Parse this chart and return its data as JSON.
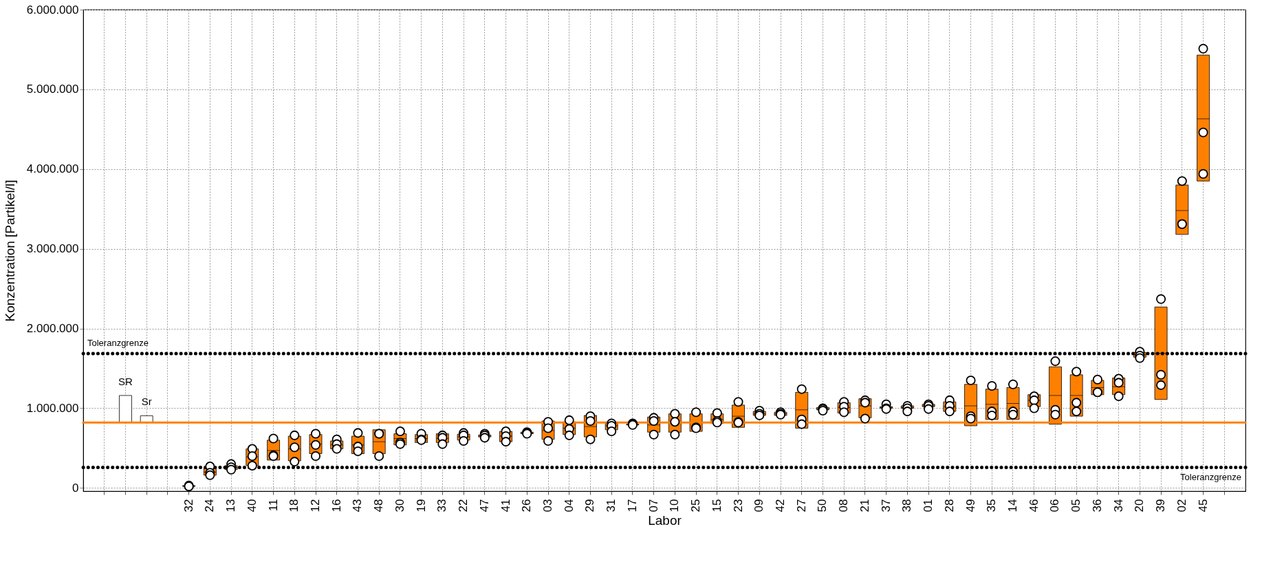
{
  "chart_data": {
    "type": "box",
    "xlabel": "Labor",
    "ylabel": "Konzentration [Partikel/l]",
    "categories": [
      null,
      null,
      null,
      null,
      "32",
      "24",
      "13",
      "40",
      "11",
      "18",
      "12",
      "16",
      "43",
      "48",
      "30",
      "19",
      "33",
      "22",
      "47",
      "41",
      "26",
      "03",
      "04",
      "29",
      "31",
      "17",
      "07",
      "10",
      "25",
      "15",
      "23",
      "09",
      "42",
      "27",
      "50",
      "08",
      "21",
      "37",
      "38",
      "01",
      "28",
      "49",
      "35",
      "14",
      "46",
      "06",
      "05",
      "36",
      "34",
      "20",
      "39",
      "02",
      "45",
      null
    ],
    "boxes": [
      null,
      {
        "low": 820000,
        "q1": 820000,
        "median": 820000,
        "q3": 1160000,
        "high": 1160000
      },
      {
        "low": 820000,
        "q1": 820000,
        "median": 820000,
        "q3": 906000,
        "high": 906000
      },
      null,
      {
        "low": 20000,
        "q1": 20000,
        "median": 20000,
        "q3": 30000,
        "high": 30000
      },
      {
        "low": 160000,
        "q1": 160000,
        "median": 200000,
        "q3": 250000,
        "high": 250000
      },
      {
        "low": 230000,
        "q1": 230000,
        "median": 250000,
        "q3": 280000,
        "high": 280000
      },
      {
        "low": 280000,
        "q1": 280000,
        "median": 390000,
        "q3": 490000,
        "high": 490000
      },
      {
        "low": 350000,
        "q1": 350000,
        "median": 470000,
        "q3": 600000,
        "high": 600000
      },
      {
        "low": 340000,
        "q1": 340000,
        "median": 490000,
        "q3": 650000,
        "high": 650000
      },
      {
        "low": 430000,
        "q1": 430000,
        "median": 550000,
        "q3": 670000,
        "high": 670000
      },
      {
        "low": 490000,
        "q1": 490000,
        "median": 540000,
        "q3": 590000,
        "high": 590000
      },
      {
        "low": 430000,
        "q1": 430000,
        "median": 540000,
        "q3": 650000,
        "high": 650000
      },
      {
        "low": 430000,
        "q1": 430000,
        "median": 580000,
        "q3": 730000,
        "high": 730000
      },
      {
        "low": 540000,
        "q1": 540000,
        "median": 620000,
        "q3": 680000,
        "high": 680000
      },
      {
        "low": 570000,
        "q1": 570000,
        "median": 620000,
        "q3": 670000,
        "high": 670000
      },
      {
        "low": 570000,
        "q1": 570000,
        "median": 620000,
        "q3": 680000,
        "high": 680000
      },
      {
        "low": 600000,
        "q1": 600000,
        "median": 640000,
        "q3": 675000,
        "high": 675000
      },
      {
        "low": 640000,
        "q1": 640000,
        "median": 650000,
        "q3": 665000,
        "high": 665000
      },
      {
        "low": 580000,
        "q1": 580000,
        "median": 650000,
        "q3": 710000,
        "high": 710000
      },
      {
        "low": 680000,
        "q1": 680000,
        "median": 690000,
        "q3": 700000,
        "high": 700000
      },
      {
        "low": 610000,
        "q1": 610000,
        "median": 720000,
        "q3": 840000,
        "high": 840000
      },
      {
        "low": 670000,
        "q1": 670000,
        "median": 750000,
        "q3": 830000,
        "high": 830000
      },
      {
        "low": 640000,
        "q1": 640000,
        "median": 770000,
        "q3": 910000,
        "high": 910000
      },
      {
        "low": 730000,
        "q1": 730000,
        "median": 780000,
        "q3": 820000,
        "high": 820000
      },
      {
        "low": 790000,
        "q1": 790000,
        "median": 795000,
        "q3": 800000,
        "high": 800000
      },
      {
        "low": 700000,
        "q1": 700000,
        "median": 790000,
        "q3": 890000,
        "high": 890000
      },
      {
        "low": 700000,
        "q1": 700000,
        "median": 820000,
        "q3": 930000,
        "high": 930000
      },
      {
        "low": 710000,
        "q1": 710000,
        "median": 820000,
        "q3": 930000,
        "high": 930000
      },
      {
        "low": 810000,
        "q1": 810000,
        "median": 860000,
        "q3": 930000,
        "high": 930000
      },
      {
        "low": 760000,
        "q1": 760000,
        "median": 900000,
        "q3": 1040000,
        "high": 1040000
      },
      {
        "low": 910000,
        "q1": 910000,
        "median": 930000,
        "q3": 960000,
        "high": 960000
      },
      {
        "low": 910000,
        "q1": 910000,
        "median": 930000,
        "q3": 950000,
        "high": 950000
      },
      {
        "low": 750000,
        "q1": 750000,
        "median": 980000,
        "q3": 1200000,
        "high": 1200000
      },
      {
        "low": 980000,
        "q1": 980000,
        "median": 990000,
        "q3": 1010000,
        "high": 1010000
      },
      {
        "low": 940000,
        "q1": 940000,
        "median": 1010000,
        "q3": 1070000,
        "high": 1070000
      },
      {
        "low": 880000,
        "q1": 880000,
        "median": 1030000,
        "q3": 1120000,
        "high": 1120000
      },
      {
        "low": 1000000,
        "q1": 1000000,
        "median": 1010000,
        "q3": 1020000,
        "high": 1020000
      },
      {
        "low": 1000000,
        "q1": 1000000,
        "median": 1010000,
        "q3": 1030000,
        "high": 1030000
      },
      {
        "low": 1020000,
        "q1": 1020000,
        "median": 1030000,
        "q3": 1050000,
        "high": 1050000
      },
      {
        "low": 960000,
        "q1": 960000,
        "median": 1020000,
        "q3": 1080000,
        "high": 1080000
      },
      {
        "low": 780000,
        "q1": 780000,
        "median": 1030000,
        "q3": 1300000,
        "high": 1300000
      },
      {
        "low": 860000,
        "q1": 860000,
        "median": 1050000,
        "q3": 1240000,
        "high": 1240000
      },
      {
        "low": 860000,
        "q1": 860000,
        "median": 1060000,
        "q3": 1260000,
        "high": 1260000
      },
      {
        "low": 1020000,
        "q1": 1020000,
        "median": 1100000,
        "q3": 1170000,
        "high": 1170000
      },
      {
        "low": 800000,
        "q1": 800000,
        "median": 1160000,
        "q3": 1520000,
        "high": 1520000
      },
      {
        "low": 900000,
        "q1": 900000,
        "median": 1160000,
        "q3": 1420000,
        "high": 1420000
      },
      {
        "low": 1170000,
        "q1": 1170000,
        "median": 1260000,
        "q3": 1350000,
        "high": 1350000
      },
      {
        "low": 1170000,
        "q1": 1170000,
        "median": 1270000,
        "q3": 1380000,
        "high": 1380000
      },
      {
        "low": 1640000,
        "q1": 1640000,
        "median": 1670000,
        "q3": 1700000,
        "high": 1700000
      },
      {
        "low": 1110000,
        "q1": 1110000,
        "median": 1690000,
        "q3": 2270000,
        "high": 2270000
      },
      {
        "low": 3180000,
        "q1": 3180000,
        "median": 3480000,
        "q3": 3800000,
        "high": 3800000
      },
      {
        "low": 3850000,
        "q1": 3850000,
        "median": 4630000,
        "q3": 5430000,
        "high": 5430000
      },
      null
    ],
    "colors": [
      null,
      "#ffffff",
      "#ffffff",
      null,
      "#ff8000",
      "#ff8000",
      "#ff8000",
      "#ff8000",
      "#ff8000",
      "#ff8000",
      "#ff8000",
      "#ff8000",
      "#ff8000",
      "#ff8000",
      "#ff8000",
      "#ff8000",
      "#ff8000",
      "#ff8000",
      "#ff8000",
      "#ff8000",
      "#ff8000",
      "#ff8000",
      "#ff8000",
      "#ff8000",
      "#ff8000",
      "#ff8000",
      "#ff8000",
      "#ff8000",
      "#ff8000",
      "#ff8000",
      "#ff8000",
      "#ff8000",
      "#ff8000",
      "#ff8000",
      "#ff8000",
      "#ff8000",
      "#ff8000",
      "#ff8000",
      "#ff8000",
      "#ff8000",
      "#ff8000",
      "#ff8000",
      "#ff8000",
      "#ff8000",
      "#ff8000",
      "#ff8000",
      "#ff8000",
      "#ff8000",
      "#ff8000",
      "#ff8000",
      "#ff8000",
      "#ff8000",
      "#ff8000",
      null
    ],
    "series": [
      {
        "type": "scatter",
        "color": "#ffffff",
        "marker": "circle",
        "x": [
          "32",
          "32",
          "32",
          "24",
          "24",
          "24",
          "13",
          "13",
          "13",
          "40",
          "40",
          "40",
          "11",
          "11",
          "11",
          "18",
          "18",
          "18",
          "12",
          "12",
          "12",
          "16",
          "16",
          "16",
          "43",
          "43",
          "43",
          "48",
          "48",
          "48",
          "30",
          "30",
          "30",
          "19",
          "19",
          "19",
          "33",
          "33",
          "33",
          "22",
          "22",
          "22",
          "47",
          "47",
          "47",
          "41",
          "41",
          "41",
          "26",
          "26",
          "26",
          "03",
          "03",
          "03",
          "04",
          "04",
          "04",
          "29",
          "29",
          "29",
          "31",
          "31",
          "31",
          "17",
          "17",
          "17",
          "07",
          "07",
          "07",
          "10",
          "10",
          "10",
          "25",
          "25",
          "25",
          "15",
          "15",
          "15",
          "23",
          "23",
          "23",
          "09",
          "09",
          "09",
          "42",
          "42",
          "42",
          "27",
          "27",
          "27",
          "50",
          "50",
          "50",
          "08",
          "08",
          "08",
          "21",
          "21",
          "21",
          "37",
          "37",
          "37",
          "38",
          "38",
          "38",
          "01",
          "01",
          "01",
          "28",
          "28",
          "28",
          "49",
          "49",
          "49",
          "35",
          "35",
          "35",
          "14",
          "14",
          "14",
          "46",
          "46",
          "46",
          "06",
          "06",
          "06",
          "05",
          "05",
          "05",
          "36",
          "36",
          "36",
          "34",
          "34",
          "34",
          "20",
          "20",
          "20",
          "39",
          "39",
          "39",
          "02",
          "02",
          "02",
          "45",
          "45",
          "45"
        ],
        "values": [
          30000,
          20000,
          20000,
          270000,
          190000,
          160000,
          300000,
          260000,
          230000,
          490000,
          400000,
          280000,
          620000,
          410000,
          400000,
          660000,
          510000,
          330000,
          680000,
          540000,
          400000,
          610000,
          550000,
          490000,
          690000,
          520000,
          460000,
          680000,
          680000,
          400000,
          710000,
          570000,
          550000,
          680000,
          610000,
          600000,
          660000,
          630000,
          550000,
          690000,
          660000,
          590000,
          680000,
          660000,
          630000,
          710000,
          650000,
          580000,
          700000,
          690000,
          680000,
          830000,
          750000,
          590000,
          850000,
          740000,
          660000,
          900000,
          840000,
          610000,
          810000,
          780000,
          710000,
          810000,
          800000,
          790000,
          880000,
          840000,
          670000,
          930000,
          830000,
          670000,
          950000,
          760000,
          750000,
          940000,
          840000,
          820000,
          1080000,
          830000,
          820000,
          970000,
          930000,
          910000,
          950000,
          930000,
          920000,
          1240000,
          860000,
          800000,
          1000000,
          990000,
          970000,
          1080000,
          1020000,
          950000,
          1100000,
          1070000,
          870000,
          1050000,
          1000000,
          990000,
          1030000,
          1000000,
          960000,
          1050000,
          1030000,
          990000,
          1100000,
          1030000,
          960000,
          1350000,
          900000,
          870000,
          1280000,
          960000,
          910000,
          1300000,
          960000,
          920000,
          1150000,
          1100000,
          1000000,
          1590000,
          980000,
          920000,
          1460000,
          1070000,
          960000,
          1360000,
          1200000,
          1200000,
          1370000,
          1320000,
          1150000,
          1710000,
          1660000,
          1630000,
          2370000,
          1420000,
          1290000,
          3850000,
          3310000,
          3310000,
          5510000,
          4460000,
          3940000
        ]
      }
    ],
    "ref_lines": [
      {
        "axis": "y",
        "value": 1686000,
        "label": "Toleranzgrenze",
        "color": "#000000",
        "line_style": "dotted"
      },
      {
        "axis": "y",
        "value": 257000,
        "label": "Toleranzgrenze",
        "color": "#000000",
        "line_style": "dotted"
      },
      {
        "axis": "y",
        "value": 821000,
        "color": "#ff8000",
        "line_style": "solid"
      }
    ],
    "annotations": [
      "SR",
      "Sr"
    ],
    "ylim": [
      -40000,
      6000000
    ],
    "yticks": [
      {
        "value": 0,
        "label": "0"
      },
      {
        "value": 1000000,
        "label": "1.000.000"
      },
      {
        "value": 2000000,
        "label": "2.000.000"
      },
      {
        "value": 3000000,
        "label": "3.000.000"
      },
      {
        "value": 4000000,
        "label": "4.000.000"
      },
      {
        "value": 5000000,
        "label": "5.000.000"
      },
      {
        "value": 6000000,
        "label": "6.000.000"
      }
    ],
    "grid": true
  }
}
